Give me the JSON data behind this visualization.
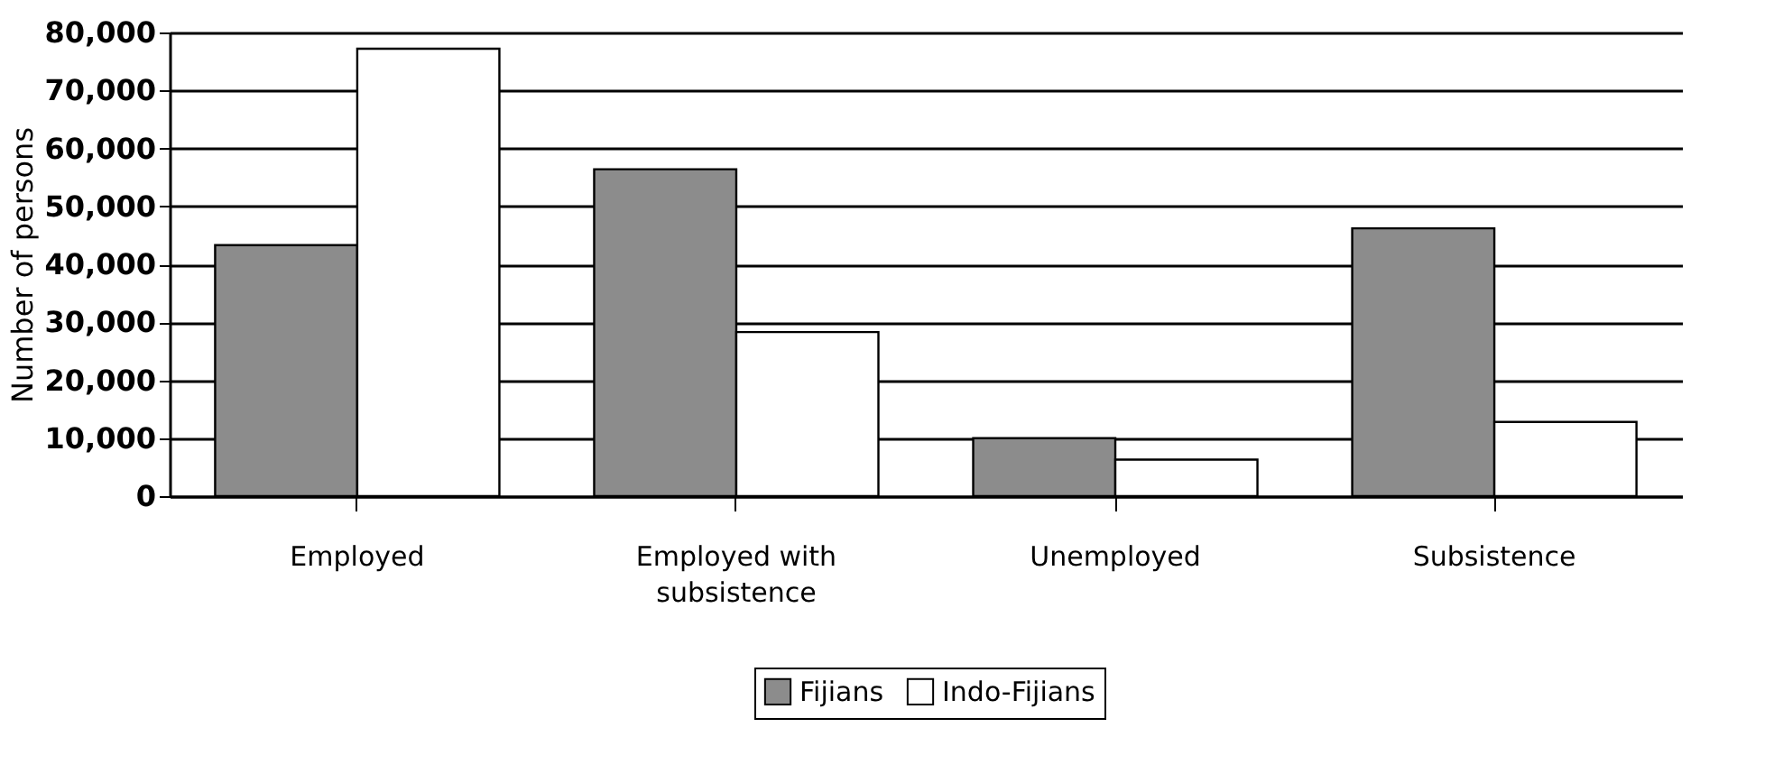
{
  "chart_data": {
    "type": "bar",
    "ylabel": "Number of persons",
    "categories": [
      "Employed",
      "Employed with subsistence",
      "Unemployed",
      "Subsistence"
    ],
    "series": [
      {
        "name": "Fijians",
        "color": "#8c8c8c",
        "values": [
          43300,
          56400,
          10000,
          46200
        ]
      },
      {
        "name": "Indo-Fijians",
        "color": "#ffffff",
        "values": [
          77200,
          28300,
          6300,
          12800
        ]
      }
    ],
    "ylim": [
      0,
      80000
    ],
    "yticks": [
      0,
      {
        "value": 10000,
        "label": "10,000"
      },
      {
        "value": 20000,
        "label": "20,000"
      },
      {
        "value": 30000,
        "label": "30,000"
      },
      {
        "value": 40000,
        "label": "40,000"
      },
      {
        "value": 50000,
        "label": "50,000"
      },
      {
        "value": 60000,
        "label": "60,000"
      },
      {
        "value": 70000,
        "label": "70,000"
      },
      {
        "value": 80000,
        "label": "80,000"
      }
    ],
    "grid": "y",
    "legend": "bottom"
  }
}
